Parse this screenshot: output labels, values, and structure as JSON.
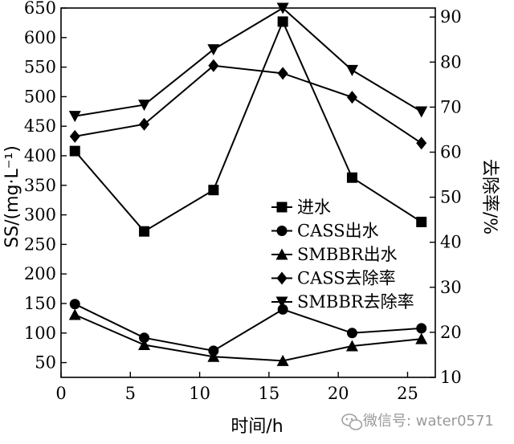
{
  "chart_data": {
    "type": "line",
    "xlabel": "时间/h",
    "ylabel": "SS/(mg·L⁻¹)",
    "y2label": "去除率/%",
    "xlim": [
      0,
      27
    ],
    "ylim": [
      25,
      650
    ],
    "y2lim": [
      10,
      92
    ],
    "xticks": [
      0,
      5,
      10,
      15,
      20,
      25
    ],
    "yticks": [
      50,
      100,
      150,
      200,
      250,
      300,
      350,
      400,
      450,
      500,
      550,
      600,
      650
    ],
    "y2ticks": [
      10,
      20,
      30,
      40,
      50,
      60,
      70,
      80,
      90
    ],
    "x": [
      1,
      6,
      11,
      16,
      21,
      26
    ],
    "series": [
      {
        "name": "进水",
        "axis": "left",
        "marker": "square",
        "values": [
          408,
          272,
          342,
          627,
          363,
          288
        ]
      },
      {
        "name": "CASS出水",
        "axis": "left",
        "marker": "circle",
        "values": [
          149,
          92,
          70,
          140,
          100,
          108
        ]
      },
      {
        "name": "SMBBR出水",
        "axis": "left",
        "marker": "triangle-up",
        "values": [
          131,
          80,
          60,
          53,
          78,
          90
        ]
      },
      {
        "name": "CASS去除率",
        "axis": "right",
        "marker": "diamond",
        "values": [
          63.5,
          66.2,
          79.2,
          77.5,
          72.2,
          62
        ]
      },
      {
        "name": "SMBBR去除率",
        "axis": "right",
        "marker": "triangle-down",
        "values": [
          68,
          70.5,
          82.8,
          92,
          78.2,
          69
        ]
      }
    ],
    "legend_position": "center-right",
    "grid": false
  },
  "watermark": {
    "icon": "wechat-icon",
    "text": "微信号: water0571"
  }
}
